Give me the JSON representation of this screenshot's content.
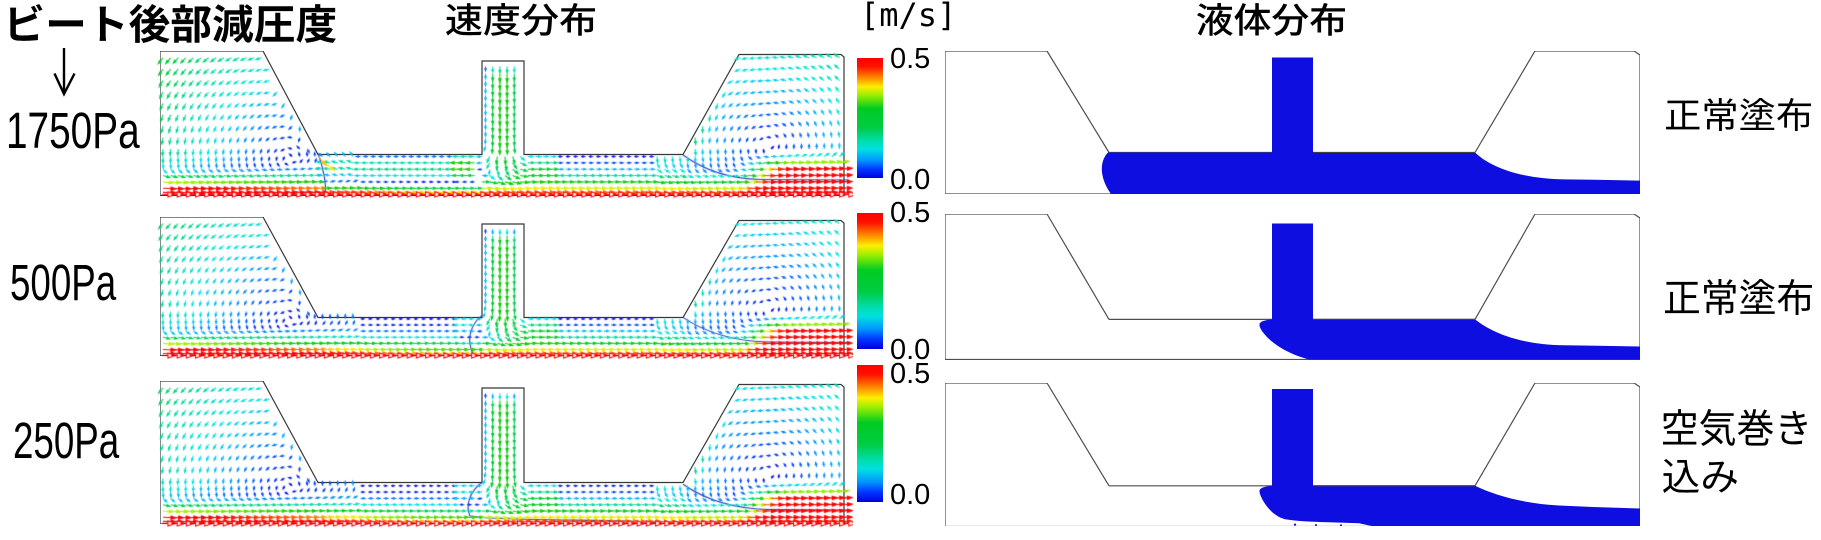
{
  "figure": {
    "title": "ビート後部減圧度",
    "title_arrow": "down-arrow",
    "velocity_column_title": "速度分布",
    "liquid_column_title": "液体分布",
    "colorbar": {
      "unit": "[m/s]",
      "max": "0.5",
      "min": "0.0"
    },
    "rows": [
      {
        "pressure": "1750Pa",
        "result": "正常塗布",
        "result_lines": [
          "正常塗布"
        ]
      },
      {
        "pressure": "500Pa",
        "result": "正常塗布",
        "result_lines": [
          "正常塗布"
        ]
      },
      {
        "pressure": "250Pa",
        "result": "空気巻き込み",
        "result_lines": [
          "空気巻き",
          "込み"
        ]
      }
    ]
  },
  "chart_data": [
    {
      "type": "heatmap",
      "subtype": "quiver-vector-field",
      "title": "速度分布",
      "rows": [
        "1750Pa",
        "500Pa",
        "250Pa"
      ],
      "colorbar": {
        "label": "[m/s]",
        "min": 0.0,
        "max": 0.5,
        "colormap": "jet (blue=0.0 → green → red=0.5)"
      },
      "geometry": "slot-die coating head cross-section: upstream vacuum chamber, slot feed channel, downstream chamber over moving web",
      "flow_features": [
        "recirculation vortices in both chambers",
        "downward feed flow in center slot",
        "web-driven high-speed (red, 0.5 m/s) layer along bottom moving wall"
      ]
    },
    {
      "type": "area",
      "title": "液体分布",
      "rows": [
        {
          "pressure": "1750Pa",
          "result": "正常塗布",
          "liquid": "coating bead fills gap from upstream lip to downstream lip; uniform wet film on web"
        },
        {
          "pressure": "500Pa",
          "result": "正常塗布",
          "liquid": "bead pinned at slot exit; uniform wet film on web"
        },
        {
          "pressure": "250Pa",
          "result": "空気巻き込み",
          "liquid": "bead detaches from web under the lip; air entrained beneath liquid; irregular film"
        }
      ],
      "liquid_color": "#0e0ee0"
    }
  ]
}
